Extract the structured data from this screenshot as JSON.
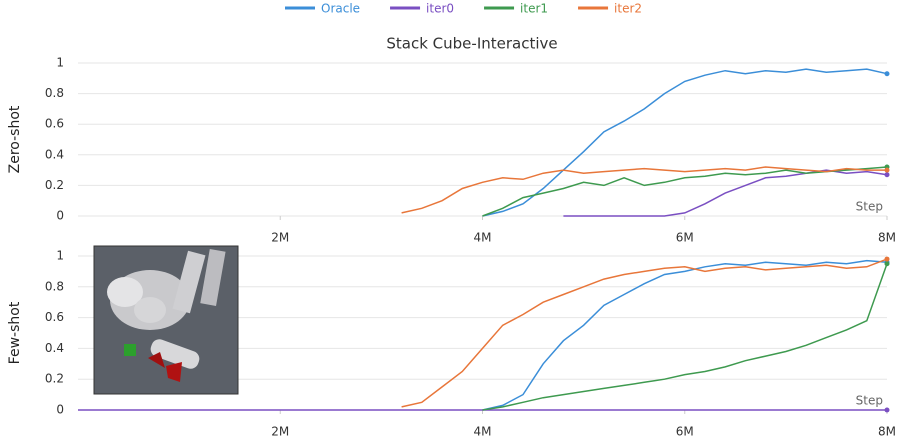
{
  "chart_data": [
    {
      "type": "line",
      "title": "Stack Cube-Interactive",
      "y_label": "Zero-shot",
      "x_label": "Step",
      "x": [
        0,
        200000,
        400000,
        600000,
        800000,
        1000000,
        1200000,
        1400000,
        1600000,
        1800000,
        2000000,
        2200000,
        2400000,
        2600000,
        2800000,
        3000000,
        3200000,
        3400000,
        3600000,
        3800000,
        4000000,
        4200000,
        4400000,
        4600000,
        4800000,
        5000000,
        5200000,
        5400000,
        5600000,
        5800000,
        6000000,
        6200000,
        6400000,
        6600000,
        6800000,
        7000000,
        7200000,
        7400000,
        7600000,
        7800000,
        8000000
      ],
      "xlim": [
        0,
        8000000
      ],
      "ylim": [
        0,
        1
      ],
      "xticks": [
        {
          "value": 2000000,
          "label": "2M"
        },
        {
          "value": 4000000,
          "label": "4M"
        },
        {
          "value": 6000000,
          "label": "6M"
        },
        {
          "value": 8000000,
          "label": "8M"
        }
      ],
      "yticks": [
        0,
        0.2,
        0.4,
        0.6,
        0.8,
        1
      ],
      "grid": true,
      "series": [
        {
          "name": "Oracle",
          "color": "#3b8ed8",
          "values": [
            null,
            null,
            null,
            null,
            null,
            null,
            null,
            null,
            null,
            null,
            null,
            null,
            null,
            null,
            null,
            null,
            null,
            null,
            null,
            null,
            0,
            0.03,
            0.08,
            0.18,
            0.3,
            0.42,
            0.55,
            0.62,
            0.7,
            0.8,
            0.88,
            0.92,
            0.95,
            0.93,
            0.95,
            0.94,
            0.96,
            0.94,
            0.95,
            0.96,
            0.93
          ]
        },
        {
          "name": "iter0",
          "color": "#7a4fc2",
          "values": [
            null,
            null,
            null,
            null,
            null,
            null,
            null,
            null,
            null,
            null,
            null,
            null,
            null,
            null,
            null,
            null,
            null,
            null,
            null,
            null,
            null,
            null,
            null,
            null,
            0,
            0,
            0,
            0,
            0,
            0,
            0.02,
            0.08,
            0.15,
            0.2,
            0.25,
            0.26,
            0.28,
            0.3,
            0.28,
            0.29,
            0.27
          ]
        },
        {
          "name": "iter1",
          "color": "#3e9a4f",
          "values": [
            null,
            null,
            null,
            null,
            null,
            null,
            null,
            null,
            null,
            null,
            null,
            null,
            null,
            null,
            null,
            null,
            null,
            null,
            null,
            null,
            0,
            0.05,
            0.12,
            0.15,
            0.18,
            0.22,
            0.2,
            0.25,
            0.2,
            0.22,
            0.25,
            0.26,
            0.28,
            0.27,
            0.28,
            0.3,
            0.28,
            0.29,
            0.3,
            0.31,
            0.32
          ]
        },
        {
          "name": "iter2",
          "color": "#e8763a",
          "values": [
            null,
            null,
            null,
            null,
            null,
            null,
            null,
            null,
            null,
            null,
            null,
            null,
            null,
            null,
            null,
            null,
            0.02,
            0.05,
            0.1,
            0.18,
            0.22,
            0.25,
            0.24,
            0.28,
            0.3,
            0.28,
            0.29,
            0.3,
            0.31,
            0.3,
            0.29,
            0.3,
            0.31,
            0.3,
            0.32,
            0.31,
            0.3,
            0.29,
            0.31,
            0.3,
            0.3
          ]
        }
      ]
    },
    {
      "type": "line",
      "y_label": "Few-shot",
      "x_label": "Step",
      "x": [
        0,
        200000,
        400000,
        600000,
        800000,
        1000000,
        1200000,
        1400000,
        1600000,
        1800000,
        2000000,
        2200000,
        2400000,
        2600000,
        2800000,
        3000000,
        3200000,
        3400000,
        3600000,
        3800000,
        4000000,
        4200000,
        4400000,
        4600000,
        4800000,
        5000000,
        5200000,
        5400000,
        5600000,
        5800000,
        6000000,
        6200000,
        6400000,
        6600000,
        6800000,
        7000000,
        7200000,
        7400000,
        7600000,
        7800000,
        8000000
      ],
      "xlim": [
        0,
        8000000
      ],
      "ylim": [
        0,
        1
      ],
      "xticks": [
        {
          "value": 2000000,
          "label": "2M"
        },
        {
          "value": 4000000,
          "label": "4M"
        },
        {
          "value": 6000000,
          "label": "6M"
        },
        {
          "value": 8000000,
          "label": "8M"
        }
      ],
      "yticks": [
        0,
        0.2,
        0.4,
        0.6,
        0.8,
        1
      ],
      "grid": true,
      "series": [
        {
          "color": "#3b8ed8",
          "values": [
            null,
            null,
            null,
            null,
            null,
            null,
            null,
            null,
            null,
            null,
            null,
            null,
            null,
            null,
            null,
            null,
            null,
            null,
            null,
            null,
            0,
            0.03,
            0.1,
            0.3,
            0.45,
            0.55,
            0.68,
            0.75,
            0.82,
            0.88,
            0.9,
            0.93,
            0.95,
            0.94,
            0.96,
            0.95,
            0.94,
            0.96,
            0.95,
            0.97,
            0.96
          ]
        },
        {
          "color": "#7a4fc2",
          "values": [
            0,
            0,
            0,
            0,
            0,
            0,
            0,
            0,
            0,
            0,
            0,
            0,
            0,
            0,
            0,
            0,
            0,
            0,
            0,
            0,
            0,
            0,
            0,
            0,
            0,
            0,
            0,
            0,
            0,
            0,
            0,
            0,
            0,
            0,
            0,
            0,
            0,
            0,
            0,
            0,
            0
          ]
        },
        {
          "color": "#3e9a4f",
          "values": [
            null,
            null,
            null,
            null,
            null,
            null,
            null,
            null,
            null,
            null,
            null,
            null,
            null,
            null,
            null,
            null,
            null,
            null,
            null,
            null,
            0,
            0.02,
            0.05,
            0.08,
            0.1,
            0.12,
            0.14,
            0.16,
            0.18,
            0.2,
            0.23,
            0.25,
            0.28,
            0.32,
            0.35,
            0.38,
            0.42,
            0.47,
            0.52,
            0.58,
            0.95
          ]
        },
        {
          "color": "#e8763a",
          "values": [
            null,
            null,
            null,
            null,
            null,
            null,
            null,
            null,
            null,
            null,
            null,
            null,
            null,
            null,
            null,
            null,
            0.02,
            0.05,
            0.15,
            0.25,
            0.4,
            0.55,
            0.62,
            0.7,
            0.75,
            0.8,
            0.85,
            0.88,
            0.9,
            0.92,
            0.93,
            0.9,
            0.92,
            0.93,
            0.91,
            0.92,
            0.93,
            0.94,
            0.92,
            0.93,
            0.98
          ]
        }
      ]
    }
  ]
}
